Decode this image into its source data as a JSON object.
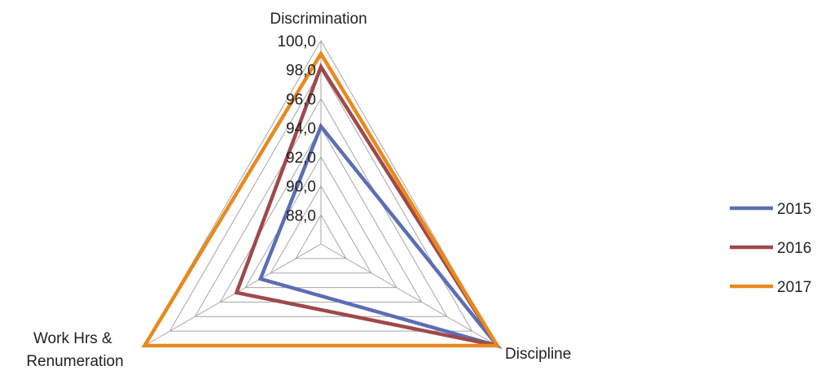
{
  "chart_data": {
    "type": "radar",
    "title": "",
    "categories": [
      "Discrimination",
      "Discipline",
      "Work Hrs &\nRenumeration"
    ],
    "r_range": [
      86,
      100
    ],
    "r_ticks": [
      88,
      90,
      92,
      94,
      96,
      98,
      100
    ],
    "tick_labels": [
      "88,0",
      "90,0",
      "92,0",
      "94,0",
      "96,0",
      "98,0",
      "100,0"
    ],
    "grid": true,
    "legend_position": "right",
    "series": [
      {
        "name": "2015",
        "color": "#5b6eb5",
        "values": [
          94.1,
          100.0,
          90.8
        ]
      },
      {
        "name": "2016",
        "color": "#a0484a",
        "values": [
          98.2,
          100.0,
          92.7
        ]
      },
      {
        "name": "2017",
        "color": "#e8891f",
        "values": [
          99.1,
          100.0,
          100.0
        ]
      }
    ]
  }
}
